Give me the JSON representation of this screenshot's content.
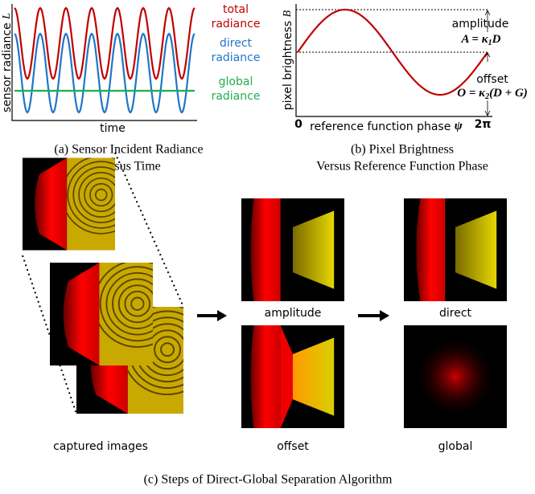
{
  "panel_a": {
    "y_label": "sensor radiance",
    "y_symbol": "L",
    "x_label": "time",
    "series_labels": [
      [
        "total",
        "radiance"
      ],
      [
        "direct",
        "radiance"
      ],
      [
        "global",
        "radiance"
      ]
    ],
    "caption": [
      "(a) Sensor Incident Radiance",
      "Versus Time"
    ]
  },
  "panel_b": {
    "y_label": "pixel brightness",
    "y_symbol": "B",
    "x_start": "0",
    "x_label": "reference function phase",
    "x_symbol": "ψ",
    "x_end": "2π",
    "amplitude_label": "amplitude",
    "amplitude_formula": [
      "A = κ",
      "1",
      "D"
    ],
    "offset_label": "offset",
    "offset_formula": [
      "O = κ",
      "2",
      "(D + G)"
    ],
    "caption": [
      "(b) Pixel Brightness",
      "Versus Reference Function Phase"
    ]
  },
  "panel_c": {
    "captured": "captured images",
    "amplitude": "amplitude",
    "offset": "offset",
    "direct": "direct",
    "global": "global",
    "caption": "(c) Steps of Direct-Global Separation Algorithm"
  }
}
